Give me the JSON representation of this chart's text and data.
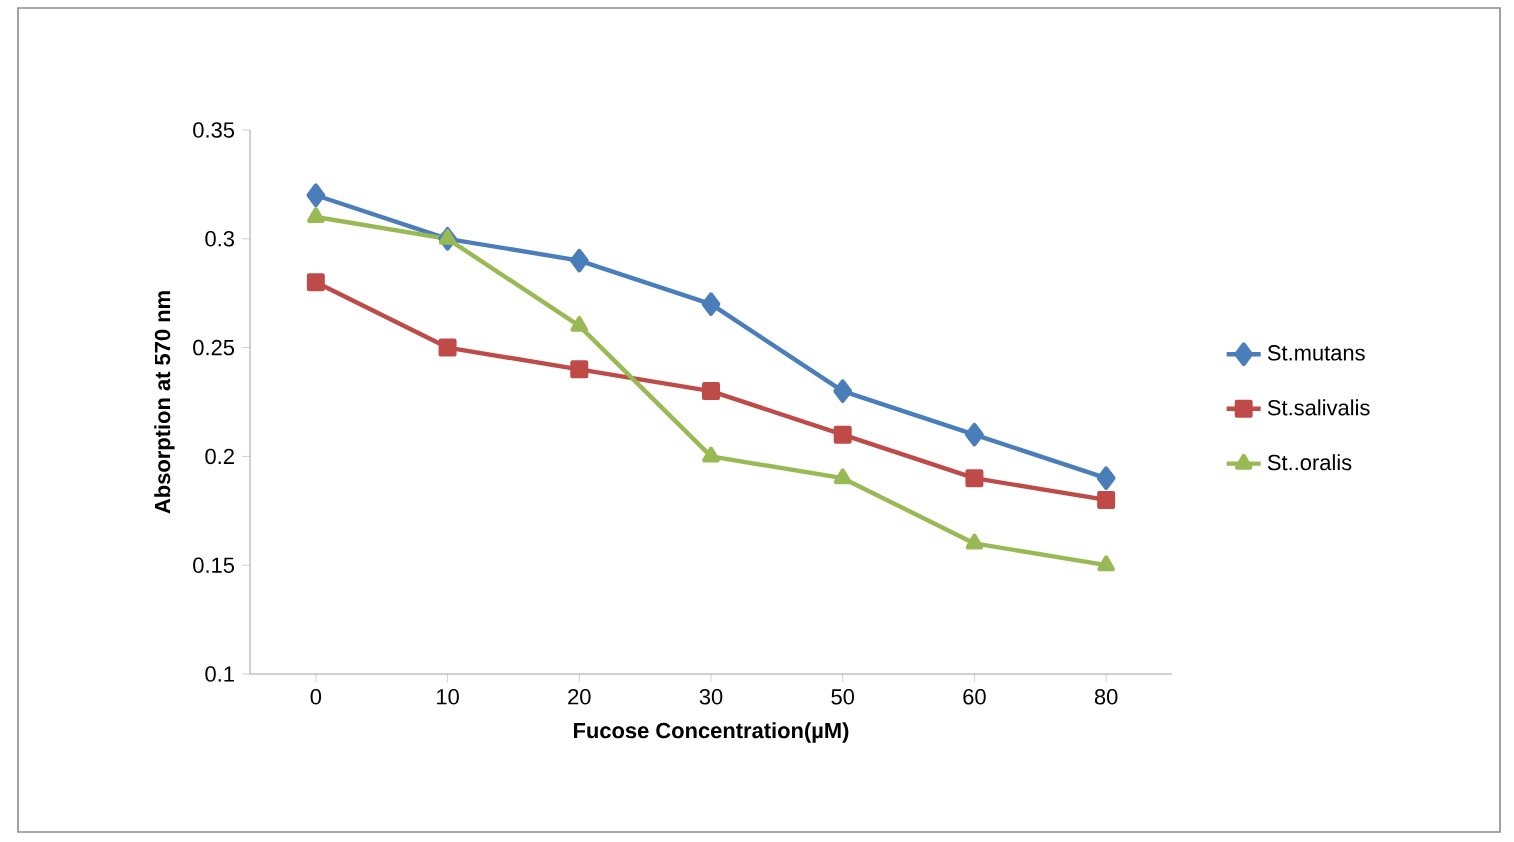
{
  "chart_data": {
    "type": "line",
    "xlabel": "Fucose Concentration(µM)",
    "ylabel": "Absorption at 570 nm",
    "categories": [
      "0",
      "10",
      "20",
      "30",
      "50",
      "60",
      "80"
    ],
    "series": [
      {
        "name": "St.mutans",
        "color": "#4a7ebb",
        "marker": "diamond",
        "values": [
          0.32,
          0.3,
          0.29,
          0.27,
          0.23,
          0.21,
          0.19
        ]
      },
      {
        "name": "St.salivalis",
        "color": "#be4b48",
        "marker": "square",
        "values": [
          0.28,
          0.25,
          0.24,
          0.23,
          0.21,
          0.19,
          0.18
        ]
      },
      {
        "name": "St..oralis",
        "color": "#98b954",
        "marker": "triangle",
        "values": [
          0.31,
          0.3,
          0.26,
          0.2,
          0.19,
          0.16,
          0.15
        ]
      }
    ],
    "ylim": [
      0.1,
      0.35
    ],
    "yticks": [
      0.1,
      0.15,
      0.2,
      0.25,
      0.3,
      0.35
    ],
    "grid": false,
    "legend": "right",
    "line_style": "solid"
  }
}
